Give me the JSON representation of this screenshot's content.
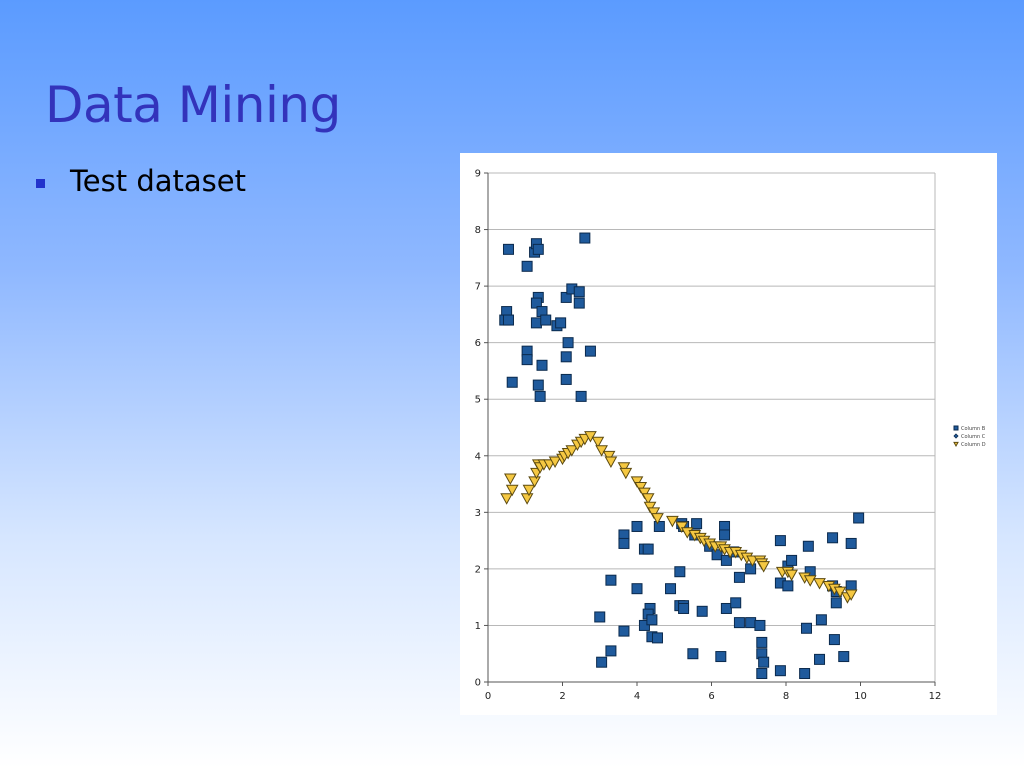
{
  "slide": {
    "title": "Data Mining",
    "bullets": [
      "Test dataset"
    ]
  },
  "colors": {
    "square_fill": "#1f5a9c",
    "square_stroke": "#0b2a4d",
    "triangle_fill": "#f5c842",
    "triangle_stroke": "#5c4a10",
    "grid": "#b8b8b8",
    "axis": "#555555"
  },
  "chart_data": {
    "type": "scatter",
    "title": "",
    "xlabel": "",
    "ylabel": "",
    "xlim": [
      0,
      12
    ],
    "ylim": [
      0,
      9
    ],
    "xticks": [
      0,
      2,
      4,
      6,
      8,
      10,
      12
    ],
    "yticks": [
      0,
      1,
      2,
      3,
      4,
      5,
      6,
      7,
      8,
      9
    ],
    "grid": "horizontal",
    "legend_position": "right",
    "series": [
      {
        "name": "Column B",
        "marker": "square",
        "points": [
          [
            0.55,
            7.65
          ],
          [
            1.05,
            7.35
          ],
          [
            1.25,
            7.6
          ],
          [
            1.3,
            7.75
          ],
          [
            1.35,
            7.65
          ],
          [
            2.6,
            7.85
          ],
          [
            0.5,
            6.55
          ],
          [
            0.45,
            6.4
          ],
          [
            0.55,
            6.4
          ],
          [
            1.35,
            6.8
          ],
          [
            1.3,
            6.7
          ],
          [
            1.45,
            6.55
          ],
          [
            1.3,
            6.35
          ],
          [
            1.55,
            6.4
          ],
          [
            1.85,
            6.3
          ],
          [
            1.95,
            6.35
          ],
          [
            2.1,
            6.8
          ],
          [
            2.25,
            6.95
          ],
          [
            2.45,
            6.9
          ],
          [
            2.45,
            6.7
          ],
          [
            2.15,
            6.0
          ],
          [
            1.05,
            5.85
          ],
          [
            1.05,
            5.7
          ],
          [
            1.45,
            5.6
          ],
          [
            2.1,
            5.75
          ],
          [
            2.75,
            5.85
          ],
          [
            0.65,
            5.3
          ],
          [
            1.35,
            5.25
          ],
          [
            1.4,
            5.05
          ],
          [
            2.1,
            5.35
          ],
          [
            2.5,
            5.05
          ],
          [
            3.65,
            2.6
          ],
          [
            3.65,
            2.45
          ],
          [
            4.0,
            2.75
          ],
          [
            4.2,
            2.35
          ],
          [
            4.3,
            2.35
          ],
          [
            4.6,
            2.75
          ],
          [
            3.3,
            1.8
          ],
          [
            4.0,
            1.65
          ],
          [
            3.0,
            1.15
          ],
          [
            3.65,
            0.9
          ],
          [
            3.3,
            0.55
          ],
          [
            3.05,
            0.35
          ],
          [
            4.2,
            1.0
          ],
          [
            4.35,
            1.3
          ],
          [
            4.3,
            1.2
          ],
          [
            4.4,
            1.1
          ],
          [
            4.4,
            0.8
          ],
          [
            4.55,
            0.78
          ],
          [
            4.9,
            1.65
          ],
          [
            5.15,
            1.95
          ],
          [
            5.15,
            1.35
          ],
          [
            5.25,
            1.35
          ],
          [
            5.25,
            1.3
          ],
          [
            5.2,
            2.8
          ],
          [
            5.25,
            2.75
          ],
          [
            5.55,
            2.6
          ],
          [
            5.6,
            2.8
          ],
          [
            5.75,
            1.25
          ],
          [
            5.5,
            0.5
          ],
          [
            5.95,
            2.4
          ],
          [
            6.15,
            2.25
          ],
          [
            6.35,
            2.75
          ],
          [
            6.35,
            2.6
          ],
          [
            6.4,
            2.15
          ],
          [
            6.4,
            1.3
          ],
          [
            6.6,
            2.3
          ],
          [
            6.65,
            1.4
          ],
          [
            6.75,
            1.85
          ],
          [
            6.75,
            1.05
          ],
          [
            7.05,
            2.0
          ],
          [
            7.05,
            1.05
          ],
          [
            7.3,
            1.0
          ],
          [
            7.35,
            0.7
          ],
          [
            7.35,
            0.5
          ],
          [
            7.4,
            0.35
          ],
          [
            7.35,
            0.15
          ],
          [
            6.25,
            0.45
          ],
          [
            7.85,
            2.5
          ],
          [
            7.85,
            1.75
          ],
          [
            7.85,
            0.2
          ],
          [
            8.05,
            1.7
          ],
          [
            8.05,
            2.05
          ],
          [
            8.15,
            2.15
          ],
          [
            8.6,
            2.4
          ],
          [
            8.65,
            1.95
          ],
          [
            8.55,
            0.95
          ],
          [
            8.5,
            0.15
          ],
          [
            8.95,
            1.1
          ],
          [
            8.9,
            0.4
          ],
          [
            9.25,
            2.55
          ],
          [
            9.25,
            1.7
          ],
          [
            9.35,
            1.6
          ],
          [
            9.35,
            1.4
          ],
          [
            9.3,
            0.75
          ],
          [
            9.55,
            0.45
          ],
          [
            9.75,
            2.45
          ],
          [
            9.75,
            1.7
          ],
          [
            9.95,
            2.9
          ]
        ]
      },
      {
        "name": "Column C",
        "marker": "diamond",
        "points": []
      },
      {
        "name": "Column D",
        "marker": "triangle-down",
        "points": [
          [
            0.5,
            3.25
          ],
          [
            0.6,
            3.6
          ],
          [
            0.65,
            3.4
          ],
          [
            1.05,
            3.25
          ],
          [
            1.1,
            3.4
          ],
          [
            1.25,
            3.55
          ],
          [
            1.3,
            3.7
          ],
          [
            1.35,
            3.85
          ],
          [
            1.4,
            3.8
          ],
          [
            1.5,
            3.85
          ],
          [
            1.65,
            3.85
          ],
          [
            1.8,
            3.9
          ],
          [
            2.0,
            3.95
          ],
          [
            2.05,
            4.0
          ],
          [
            2.15,
            4.05
          ],
          [
            2.25,
            4.1
          ],
          [
            2.4,
            4.2
          ],
          [
            2.5,
            4.25
          ],
          [
            2.6,
            4.3
          ],
          [
            2.75,
            4.35
          ],
          [
            2.95,
            4.25
          ],
          [
            3.05,
            4.1
          ],
          [
            3.25,
            4.0
          ],
          [
            3.3,
            3.9
          ],
          [
            3.65,
            3.8
          ],
          [
            3.7,
            3.7
          ],
          [
            4.0,
            3.55
          ],
          [
            4.1,
            3.45
          ],
          [
            4.2,
            3.35
          ],
          [
            4.3,
            3.25
          ],
          [
            4.35,
            3.1
          ],
          [
            4.45,
            3.0
          ],
          [
            4.55,
            2.9
          ],
          [
            4.95,
            2.85
          ],
          [
            5.2,
            2.75
          ],
          [
            5.35,
            2.65
          ],
          [
            5.55,
            2.6
          ],
          [
            5.7,
            2.55
          ],
          [
            5.8,
            2.5
          ],
          [
            5.95,
            2.45
          ],
          [
            6.1,
            2.4
          ],
          [
            6.25,
            2.4
          ],
          [
            6.35,
            2.35
          ],
          [
            6.5,
            2.3
          ],
          [
            6.65,
            2.3
          ],
          [
            6.8,
            2.25
          ],
          [
            6.95,
            2.2
          ],
          [
            7.1,
            2.15
          ],
          [
            7.3,
            2.15
          ],
          [
            7.35,
            2.1
          ],
          [
            7.4,
            2.05
          ],
          [
            7.9,
            1.95
          ],
          [
            8.05,
            1.95
          ],
          [
            8.15,
            1.9
          ],
          [
            8.5,
            1.85
          ],
          [
            8.65,
            1.8
          ],
          [
            8.9,
            1.75
          ],
          [
            9.15,
            1.7
          ],
          [
            9.3,
            1.65
          ],
          [
            9.45,
            1.6
          ],
          [
            9.65,
            1.5
          ],
          [
            9.75,
            1.55
          ]
        ]
      }
    ]
  }
}
